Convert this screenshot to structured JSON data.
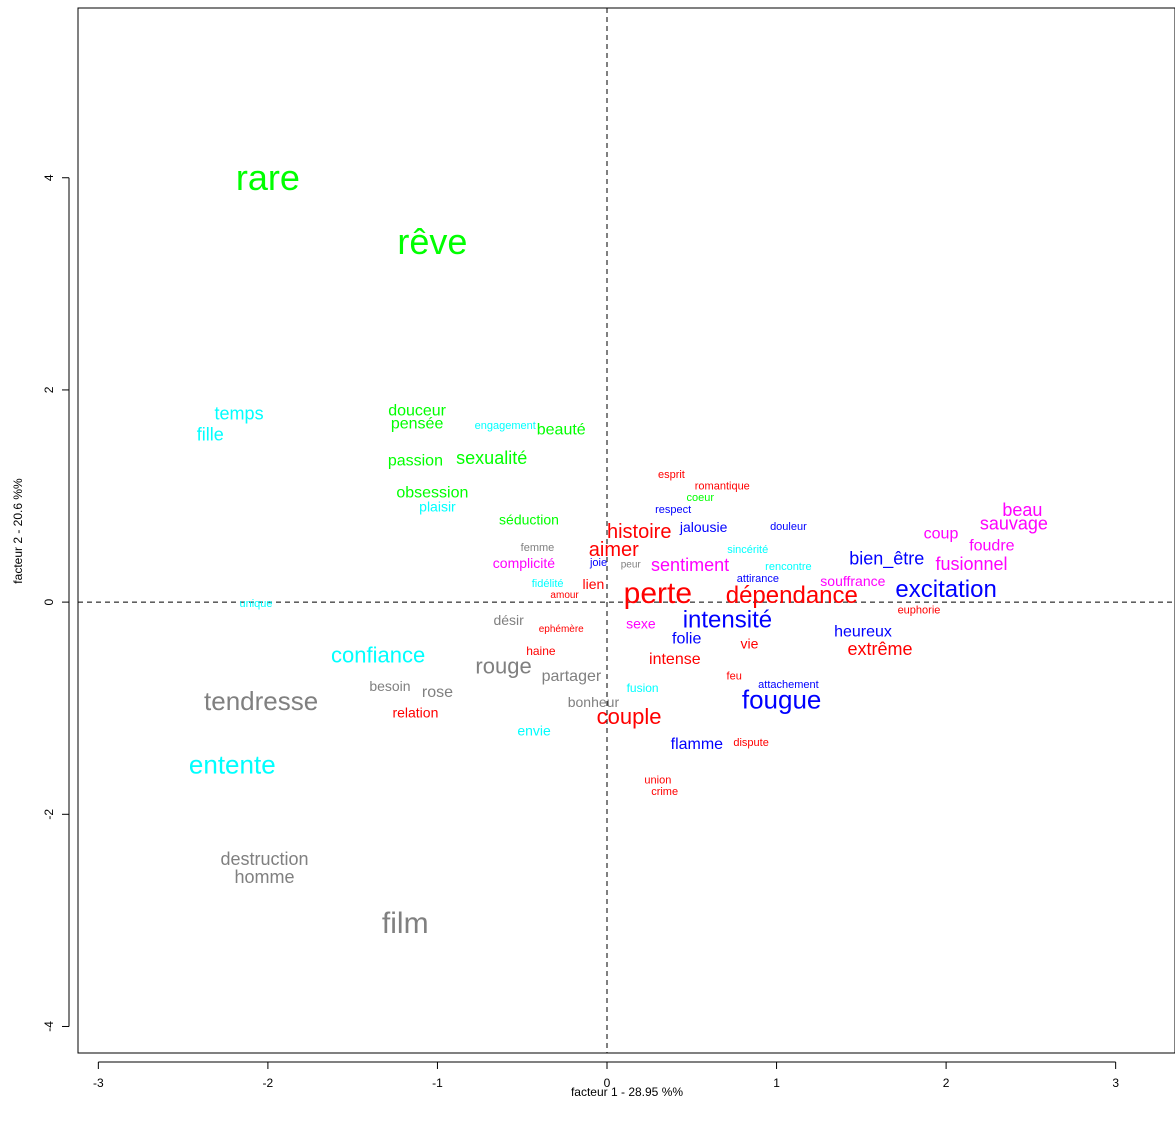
{
  "chart_data": {
    "type": "scatter",
    "xlabel": "facteur 1 - 28.95 %%",
    "ylabel": "facteur 2 - 20.6 %%",
    "xlim": [
      -3.12,
      3.35
    ],
    "ylim": [
      -4.25,
      5.6
    ],
    "x_ticks": [
      -3,
      -2,
      -1,
      0,
      1,
      2,
      3
    ],
    "y_ticks": [
      -4,
      -2,
      0,
      2,
      4
    ],
    "x_tick_labels": [
      "-3",
      "-2",
      "-1",
      "0",
      "1",
      "2",
      "3"
    ],
    "y_tick_labels": [
      "-4",
      "-2",
      "0",
      "2",
      "4"
    ],
    "reference_lines": {
      "x": 0,
      "y": 0,
      "style": "dashed"
    },
    "grid": false,
    "legend": "none",
    "colors": {
      "green": "#00ff00",
      "cyan": "#00ffff",
      "gray": "#808080",
      "red": "#ff0000",
      "blue": "#0000ff",
      "magenta": "#ff00ff"
    },
    "points": [
      {
        "label": "rare",
        "x": -2.0,
        "y": 4.0,
        "size": 36,
        "color": "green"
      },
      {
        "label": "rêve",
        "x": -1.03,
        "y": 3.4,
        "size": 36,
        "color": "green"
      },
      {
        "label": "douceur",
        "x": -1.12,
        "y": 1.8,
        "size": 16,
        "color": "green"
      },
      {
        "label": "pensée",
        "x": -1.12,
        "y": 1.68,
        "size": 16,
        "color": "green"
      },
      {
        "label": "engagement",
        "x": -0.6,
        "y": 1.66,
        "size": 11,
        "color": "cyan"
      },
      {
        "label": "beauté",
        "x": -0.27,
        "y": 1.62,
        "size": 16,
        "color": "green"
      },
      {
        "label": "passion",
        "x": -1.13,
        "y": 1.33,
        "size": 16,
        "color": "green"
      },
      {
        "label": "sexualité",
        "x": -0.68,
        "y": 1.36,
        "size": 18,
        "color": "green"
      },
      {
        "label": "obsession",
        "x": -1.03,
        "y": 1.03,
        "size": 16,
        "color": "green"
      },
      {
        "label": "plaisir",
        "x": -1.0,
        "y": 0.9,
        "size": 14,
        "color": "cyan"
      },
      {
        "label": "séduction",
        "x": -0.46,
        "y": 0.78,
        "size": 14,
        "color": "green"
      },
      {
        "label": "temps",
        "x": -2.17,
        "y": 1.78,
        "size": 18,
        "color": "cyan"
      },
      {
        "label": "fille",
        "x": -2.34,
        "y": 1.58,
        "size": 18,
        "color": "cyan"
      },
      {
        "label": "femme",
        "x": -0.41,
        "y": 0.51,
        "size": 11,
        "color": "gray"
      },
      {
        "label": "complicité",
        "x": -0.49,
        "y": 0.37,
        "size": 14,
        "color": "magenta"
      },
      {
        "label": "joie",
        "x": -0.05,
        "y": 0.37,
        "size": 11,
        "color": "blue"
      },
      {
        "label": "peur",
        "x": 0.14,
        "y": 0.35,
        "size": 10,
        "color": "gray"
      },
      {
        "label": "fidélité",
        "x": -0.35,
        "y": 0.17,
        "size": 11,
        "color": "cyan"
      },
      {
        "label": "amour",
        "x": -0.25,
        "y": 0.06,
        "size": 10,
        "color": "red"
      },
      {
        "label": "lien",
        "x": -0.08,
        "y": 0.17,
        "size": 14,
        "color": "red"
      },
      {
        "label": "unique",
        "x": -2.07,
        "y": -0.02,
        "size": 11,
        "color": "cyan"
      },
      {
        "label": "désir",
        "x": -0.58,
        "y": -0.17,
        "size": 14,
        "color": "gray"
      },
      {
        "label": "ephémère",
        "x": -0.27,
        "y": -0.26,
        "size": 10,
        "color": "red"
      },
      {
        "label": "haine",
        "x": -0.39,
        "y": -0.46,
        "size": 12,
        "color": "red"
      },
      {
        "label": "confiance",
        "x": -1.35,
        "y": -0.5,
        "size": 22,
        "color": "cyan"
      },
      {
        "label": "rouge",
        "x": -0.61,
        "y": -0.6,
        "size": 22,
        "color": "gray"
      },
      {
        "label": "partager",
        "x": -0.21,
        "y": -0.7,
        "size": 16,
        "color": "gray"
      },
      {
        "label": "besoin",
        "x": -1.28,
        "y": -0.79,
        "size": 14,
        "color": "gray"
      },
      {
        "label": "rose",
        "x": -1.0,
        "y": -0.85,
        "size": 16,
        "color": "gray"
      },
      {
        "label": "bonheur",
        "x": -0.08,
        "y": -0.94,
        "size": 14,
        "color": "gray"
      },
      {
        "label": "relation",
        "x": -1.13,
        "y": -1.04,
        "size": 14,
        "color": "red"
      },
      {
        "label": "tendresse",
        "x": -2.04,
        "y": -0.93,
        "size": 26,
        "color": "gray"
      },
      {
        "label": "envie",
        "x": -0.43,
        "y": -1.21,
        "size": 14,
        "color": "cyan"
      },
      {
        "label": "entente",
        "x": -2.21,
        "y": -1.53,
        "size": 26,
        "color": "cyan"
      },
      {
        "label": "destruction",
        "x": -2.02,
        "y": -2.42,
        "size": 18,
        "color": "gray"
      },
      {
        "label": "homme",
        "x": -2.02,
        "y": -2.59,
        "size": 18,
        "color": "gray"
      },
      {
        "label": "film",
        "x": -1.19,
        "y": -3.03,
        "size": 30,
        "color": "gray"
      },
      {
        "label": "esprit",
        "x": 0.38,
        "y": 1.2,
        "size": 11,
        "color": "red"
      },
      {
        "label": "romantique",
        "x": 0.68,
        "y": 1.09,
        "size": 11,
        "color": "red"
      },
      {
        "label": "coeur",
        "x": 0.55,
        "y": 0.98,
        "size": 11,
        "color": "green"
      },
      {
        "label": "respect",
        "x": 0.39,
        "y": 0.87,
        "size": 11,
        "color": "blue"
      },
      {
        "label": "histoire",
        "x": 0.19,
        "y": 0.66,
        "size": 20,
        "color": "red"
      },
      {
        "label": "jalousie",
        "x": 0.57,
        "y": 0.71,
        "size": 14,
        "color": "blue"
      },
      {
        "label": "douleur",
        "x": 1.07,
        "y": 0.71,
        "size": 11,
        "color": "blue"
      },
      {
        "label": "aimer",
        "x": 0.04,
        "y": 0.49,
        "size": 20,
        "color": "red"
      },
      {
        "label": "sentiment",
        "x": 0.49,
        "y": 0.35,
        "size": 18,
        "color": "magenta"
      },
      {
        "label": "sincérité",
        "x": 0.83,
        "y": 0.49,
        "size": 11,
        "color": "cyan"
      },
      {
        "label": "rencontre",
        "x": 1.07,
        "y": 0.33,
        "size": 11,
        "color": "cyan"
      },
      {
        "label": "attirance",
        "x": 0.89,
        "y": 0.22,
        "size": 11,
        "color": "blue"
      },
      {
        "label": "perte",
        "x": 0.3,
        "y": 0.08,
        "size": 30,
        "color": "red"
      },
      {
        "label": "dépendance",
        "x": 1.09,
        "y": 0.06,
        "size": 24,
        "color": "red"
      },
      {
        "label": "souffrance",
        "x": 1.45,
        "y": 0.2,
        "size": 14,
        "color": "magenta"
      },
      {
        "label": "bien_être",
        "x": 1.65,
        "y": 0.41,
        "size": 18,
        "color": "blue"
      },
      {
        "label": "fusionnel",
        "x": 2.15,
        "y": 0.36,
        "size": 18,
        "color": "magenta"
      },
      {
        "label": "excitation",
        "x": 2.0,
        "y": 0.12,
        "size": 24,
        "color": "blue"
      },
      {
        "label": "euphorie",
        "x": 1.84,
        "y": -0.08,
        "size": 11,
        "color": "red"
      },
      {
        "label": "coup",
        "x": 1.97,
        "y": 0.64,
        "size": 16,
        "color": "magenta"
      },
      {
        "label": "foudre",
        "x": 2.27,
        "y": 0.53,
        "size": 16,
        "color": "magenta"
      },
      {
        "label": "sauvage",
        "x": 2.4,
        "y": 0.74,
        "size": 18,
        "color": "magenta"
      },
      {
        "label": "beau",
        "x": 2.45,
        "y": 0.87,
        "size": 18,
        "color": "magenta"
      },
      {
        "label": "sexe",
        "x": 0.2,
        "y": -0.2,
        "size": 14,
        "color": "magenta"
      },
      {
        "label": "intensité",
        "x": 0.71,
        "y": -0.17,
        "size": 24,
        "color": "blue"
      },
      {
        "label": "folie",
        "x": 0.47,
        "y": -0.35,
        "size": 16,
        "color": "blue"
      },
      {
        "label": "vie",
        "x": 0.84,
        "y": -0.39,
        "size": 14,
        "color": "red"
      },
      {
        "label": "heureux",
        "x": 1.51,
        "y": -0.28,
        "size": 16,
        "color": "blue"
      },
      {
        "label": "extrême",
        "x": 1.61,
        "y": -0.44,
        "size": 18,
        "color": "red"
      },
      {
        "label": "intense",
        "x": 0.4,
        "y": -0.54,
        "size": 16,
        "color": "red"
      },
      {
        "label": "fusion",
        "x": 0.21,
        "y": -0.81,
        "size": 12,
        "color": "cyan"
      },
      {
        "label": "feu",
        "x": 0.75,
        "y": -0.7,
        "size": 11,
        "color": "red"
      },
      {
        "label": "attachement",
        "x": 1.07,
        "y": -0.78,
        "size": 11,
        "color": "blue"
      },
      {
        "label": "fougue",
        "x": 1.03,
        "y": -0.92,
        "size": 26,
        "color": "blue"
      },
      {
        "label": "couple",
        "x": 0.13,
        "y": -1.08,
        "size": 22,
        "color": "red"
      },
      {
        "label": "flamme",
        "x": 0.53,
        "y": -1.34,
        "size": 16,
        "color": "blue"
      },
      {
        "label": "dispute",
        "x": 0.85,
        "y": -1.33,
        "size": 11,
        "color": "red"
      },
      {
        "label": "union",
        "x": 0.3,
        "y": -1.68,
        "size": 11,
        "color": "red"
      },
      {
        "label": "crime",
        "x": 0.34,
        "y": -1.79,
        "size": 11,
        "color": "red"
      }
    ]
  }
}
